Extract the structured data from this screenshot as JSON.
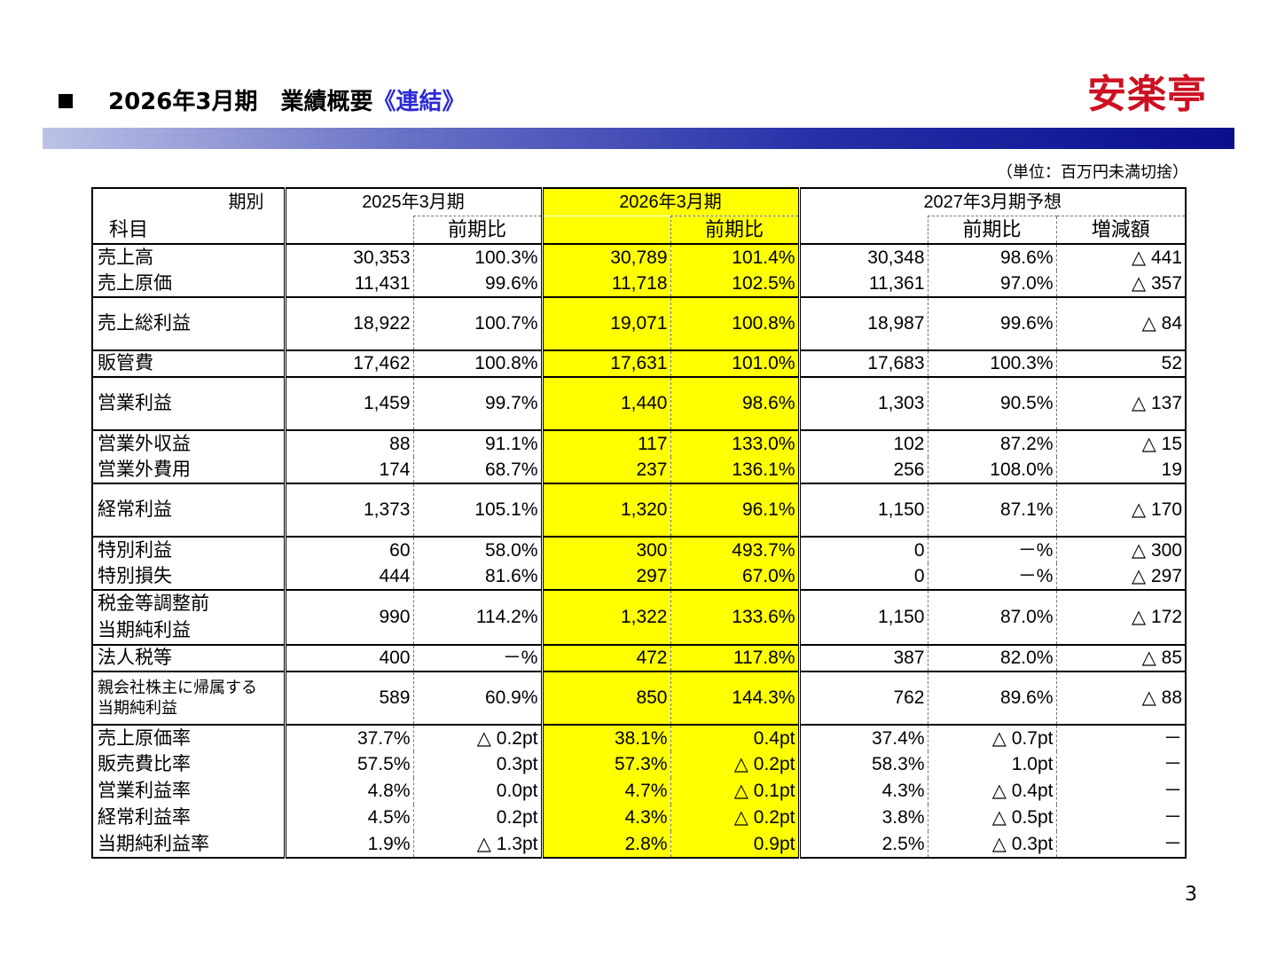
{
  "header": {
    "title_main": "2026年3月期　業績概要",
    "title_accent": "《連結》",
    "logo": "安楽亭",
    "unit_note": "（単位：百万円未満切捨）",
    "page_number": "3"
  },
  "table": {
    "corner_top": "期別",
    "corner_bottom": "科目",
    "periods": [
      "2025年3月期",
      "2026年3月期",
      "2027年3月期予想"
    ],
    "sub_yoy": "前期比",
    "sub_diff": "増減額",
    "rows": [
      {
        "label": "売上高",
        "c1": "30,353",
        "c2": "100.3%",
        "c3": "30,789",
        "c4": "101.4%",
        "c5": "30,348",
        "c6": "98.6%",
        "c7": "△ 441"
      },
      {
        "label": "売上原価",
        "c1": "11,431",
        "c2": "99.6%",
        "c3": "11,718",
        "c4": "102.5%",
        "c5": "11,361",
        "c6": "97.0%",
        "c7": "△ 357"
      },
      {
        "label": "売上総利益",
        "c1": "18,922",
        "c2": "100.7%",
        "c3": "19,071",
        "c4": "100.8%",
        "c5": "18,987",
        "c6": "99.6%",
        "c7": "△ 84"
      },
      {
        "label": "販管費",
        "c1": "17,462",
        "c2": "100.8%",
        "c3": "17,631",
        "c4": "101.0%",
        "c5": "17,683",
        "c6": "100.3%",
        "c7": "52"
      },
      {
        "label": "営業利益",
        "c1": "1,459",
        "c2": "99.7%",
        "c3": "1,440",
        "c4": "98.6%",
        "c5": "1,303",
        "c6": "90.5%",
        "c7": "△ 137"
      },
      {
        "label": "営業外収益",
        "c1": "88",
        "c2": "91.1%",
        "c3": "117",
        "c4": "133.0%",
        "c5": "102",
        "c6": "87.2%",
        "c7": "△ 15"
      },
      {
        "label": "営業外費用",
        "c1": "174",
        "c2": "68.7%",
        "c3": "237",
        "c4": "136.1%",
        "c5": "256",
        "c6": "108.0%",
        "c7": "19"
      },
      {
        "label": "経常利益",
        "c1": "1,373",
        "c2": "105.1%",
        "c3": "1,320",
        "c4": "96.1%",
        "c5": "1,150",
        "c6": "87.1%",
        "c7": "△ 170"
      },
      {
        "label": "特別利益",
        "c1": "60",
        "c2": "58.0%",
        "c3": "300",
        "c4": "493.7%",
        "c5": "0",
        "c6": "－%",
        "c7": "△ 300"
      },
      {
        "label": "特別損失",
        "c1": "444",
        "c2": "81.6%",
        "c3": "297",
        "c4": "67.0%",
        "c5": "0",
        "c6": "－%",
        "c7": "△ 297"
      },
      {
        "label_line1": "税金等調整前",
        "label_line2": "当期純利益",
        "c1": "990",
        "c2": "114.2%",
        "c3": "1,322",
        "c4": "133.6%",
        "c5": "1,150",
        "c6": "87.0%",
        "c7": "△ 172"
      },
      {
        "label": "法人税等",
        "c1": "400",
        "c2": "－%",
        "c3": "472",
        "c4": "117.8%",
        "c5": "387",
        "c6": "82.0%",
        "c7": "△ 85"
      },
      {
        "label_line1": "親会社株主に帰属する",
        "label_line2": "当期純利益",
        "c1": "589",
        "c2": "60.9%",
        "c3": "850",
        "c4": "144.3%",
        "c5": "762",
        "c6": "89.6%",
        "c7": "△ 88"
      },
      {
        "label": "売上原価率",
        "c1": "37.7%",
        "c2": "△ 0.2pt",
        "c3": "38.1%",
        "c4": "0.4pt",
        "c5": "37.4%",
        "c6": "△ 0.7pt",
        "c7": "－"
      },
      {
        "label": "販売費比率",
        "c1": "57.5%",
        "c2": "0.3pt",
        "c3": "57.3%",
        "c4": "△ 0.2pt",
        "c5": "58.3%",
        "c6": "1.0pt",
        "c7": "－"
      },
      {
        "label": "営業利益率",
        "c1": "4.8%",
        "c2": "0.0pt",
        "c3": "4.7%",
        "c4": "△ 0.1pt",
        "c5": "4.3%",
        "c6": "△ 0.4pt",
        "c7": "－"
      },
      {
        "label": "経常利益率",
        "c1": "4.5%",
        "c2": "0.2pt",
        "c3": "4.3%",
        "c4": "△ 0.2pt",
        "c5": "3.8%",
        "c6": "△ 0.5pt",
        "c7": "－"
      },
      {
        "label": "当期純利益率",
        "c1": "1.9%",
        "c2": "△ 1.3pt",
        "c3": "2.8%",
        "c4": "0.9pt",
        "c5": "2.5%",
        "c6": "△ 0.3pt",
        "c7": "－"
      }
    ]
  }
}
